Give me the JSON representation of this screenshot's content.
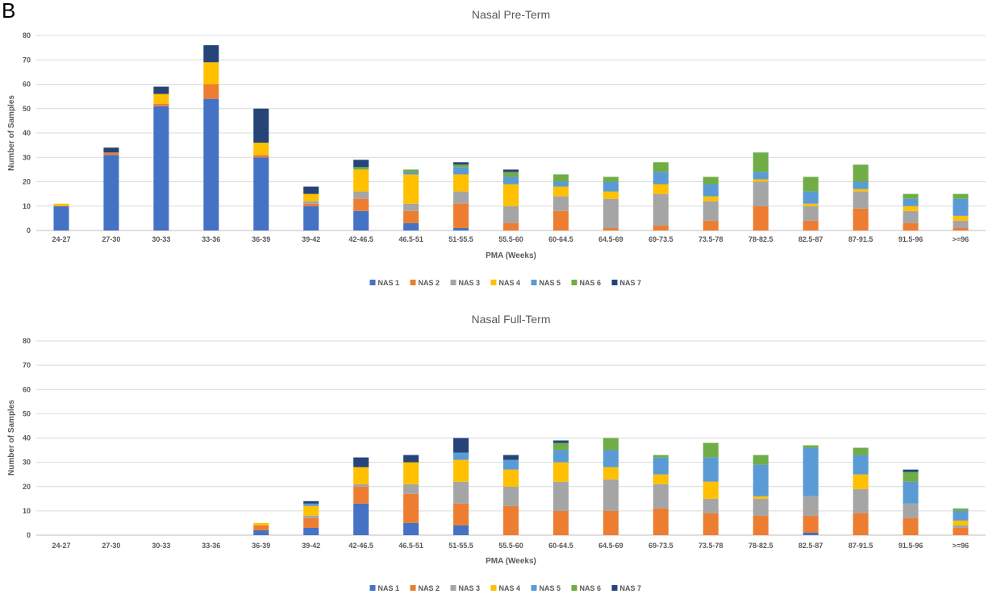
{
  "panel_label": "B",
  "chart_data": [
    {
      "type": "bar",
      "stacked": true,
      "title": "Nasal Pre-Term",
      "xlabel": "PMA (Weeks)",
      "ylabel": "Number of Samples",
      "ylim": [
        0,
        80
      ],
      "yticks": [
        0,
        10,
        20,
        30,
        40,
        50,
        60,
        70,
        80
      ],
      "grid": true,
      "legend": "bottom",
      "categories": [
        "24-27",
        "27-30",
        "30-33",
        "33-36",
        "36-39",
        "39-42",
        "42-46.5",
        "46.5-51",
        "51-55.5",
        "55.5-60",
        "60-64.5",
        "64.5-69",
        "69-73.5",
        "73.5-78",
        "78-82.5",
        "82.5-87",
        "87-91.5",
        "91.5-96",
        ">=96"
      ],
      "series": [
        {
          "name": "NAS 1",
          "color": "#4472C4",
          "values": [
            10,
            31,
            51,
            54,
            30,
            10,
            8,
            3,
            1,
            0,
            0,
            0,
            0,
            0,
            0,
            0,
            0,
            0,
            0
          ]
        },
        {
          "name": "NAS 2",
          "color": "#ED7D31",
          "values": [
            0,
            1,
            1,
            6,
            1,
            1,
            5,
            5,
            10,
            3,
            8,
            1,
            2,
            4,
            10,
            4,
            9,
            3,
            1
          ]
        },
        {
          "name": "NAS 3",
          "color": "#A5A5A5",
          "values": [
            0,
            0,
            0,
            0,
            0,
            1,
            3,
            3,
            5,
            7,
            6,
            12,
            13,
            8,
            10,
            6,
            7,
            5,
            3
          ]
        },
        {
          "name": "NAS 4",
          "color": "#FFC000",
          "values": [
            1,
            0,
            4,
            9,
            5,
            3,
            9,
            12,
            7,
            9,
            4,
            3,
            4,
            2,
            1,
            1,
            1,
            2,
            2
          ]
        },
        {
          "name": "NAS 5",
          "color": "#5B9BD5",
          "values": [
            0,
            0,
            0,
            0,
            0,
            0,
            0,
            1,
            3,
            3,
            2,
            4,
            5,
            5,
            3,
            5,
            3,
            3,
            7
          ]
        },
        {
          "name": "NAS 6",
          "color": "#70AD47",
          "values": [
            0,
            0,
            0,
            0,
            0,
            0,
            1,
            1,
            1,
            2,
            3,
            2,
            4,
            3,
            8,
            6,
            7,
            2,
            2
          ]
        },
        {
          "name": "NAS 7",
          "color": "#264478",
          "values": [
            0,
            2,
            3,
            7,
            14,
            3,
            3,
            0,
            1,
            1,
            0,
            0,
            0,
            0,
            0,
            0,
            0,
            0,
            0
          ]
        }
      ]
    },
    {
      "type": "bar",
      "stacked": true,
      "title": "Nasal Full-Term",
      "xlabel": "PMA (Weeks)",
      "ylabel": "Number of Samples",
      "ylim": [
        0,
        80
      ],
      "yticks": [
        0,
        10,
        20,
        30,
        40,
        50,
        60,
        70,
        80
      ],
      "grid": true,
      "legend": "bottom",
      "categories": [
        "24-27",
        "27-30",
        "30-33",
        "33-36",
        "36-39",
        "39-42",
        "42-46.5",
        "46.5-51",
        "51-55.5",
        "55.5-60",
        "60-64.5",
        "64.5-69",
        "69-73.5",
        "73.5-78",
        "78-82.5",
        "82.5-87",
        "87-91.5",
        "91.5-96",
        ">=96"
      ],
      "series": [
        {
          "name": "NAS 1",
          "color": "#4472C4",
          "values": [
            0,
            0,
            0,
            0,
            2,
            3,
            13,
            5,
            4,
            0,
            0,
            0,
            0,
            0,
            0,
            1,
            0,
            0,
            0
          ]
        },
        {
          "name": "NAS 2",
          "color": "#ED7D31",
          "values": [
            0,
            0,
            0,
            0,
            2,
            4,
            7,
            12,
            9,
            12,
            10,
            10,
            11,
            9,
            8,
            7,
            9,
            7,
            3
          ]
        },
        {
          "name": "NAS 3",
          "color": "#A5A5A5",
          "values": [
            0,
            0,
            0,
            0,
            0,
            1,
            1,
            4,
            9,
            8,
            12,
            13,
            10,
            6,
            7,
            8,
            10,
            6,
            1
          ]
        },
        {
          "name": "NAS 4",
          "color": "#FFC000",
          "values": [
            0,
            0,
            0,
            0,
            1,
            4,
            7,
            9,
            9,
            7,
            8,
            5,
            4,
            7,
            1,
            0,
            6,
            0,
            2
          ]
        },
        {
          "name": "NAS 5",
          "color": "#5B9BD5",
          "values": [
            0,
            0,
            0,
            0,
            0,
            1,
            0,
            0,
            3,
            4,
            5,
            7,
            7,
            10,
            13,
            20,
            8,
            9,
            4
          ]
        },
        {
          "name": "NAS 6",
          "color": "#70AD47",
          "values": [
            0,
            0,
            0,
            0,
            0,
            0,
            0,
            0,
            0,
            0,
            3,
            5,
            1,
            6,
            4,
            1,
            3,
            4,
            1
          ]
        },
        {
          "name": "NAS 7",
          "color": "#264478",
          "values": [
            0,
            0,
            0,
            0,
            0,
            1,
            4,
            3,
            6,
            2,
            1,
            0,
            0,
            0,
            0,
            0,
            0,
            1,
            0
          ]
        }
      ]
    }
  ]
}
